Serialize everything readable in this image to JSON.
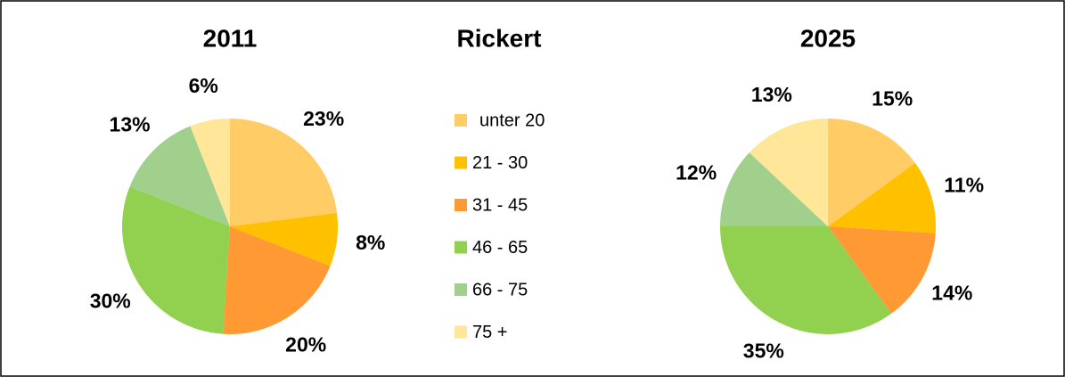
{
  "title": "Rickert",
  "legend": {
    "categories": [
      "unter 20",
      "21 - 30",
      "31 - 45",
      "46 - 65",
      "66 - 75",
      "75 +"
    ],
    "colors": [
      "#ffcc66",
      "#ffc000",
      "#ff9933",
      "#92d050",
      "#a0d08c",
      "#ffe699"
    ]
  },
  "chart_data": [
    {
      "type": "pie",
      "title": "2011",
      "values": [
        23,
        8,
        20,
        30,
        13,
        6
      ],
      "value_labels": [
        "23%",
        "8%",
        "20%",
        "30%",
        "13%",
        "6%"
      ]
    },
    {
      "type": "pie",
      "title": "2025",
      "values": [
        15,
        11,
        14,
        35,
        12,
        13
      ],
      "value_labels": [
        "15%",
        "11%",
        "14%",
        "35%",
        "12%",
        "13%"
      ]
    }
  ]
}
